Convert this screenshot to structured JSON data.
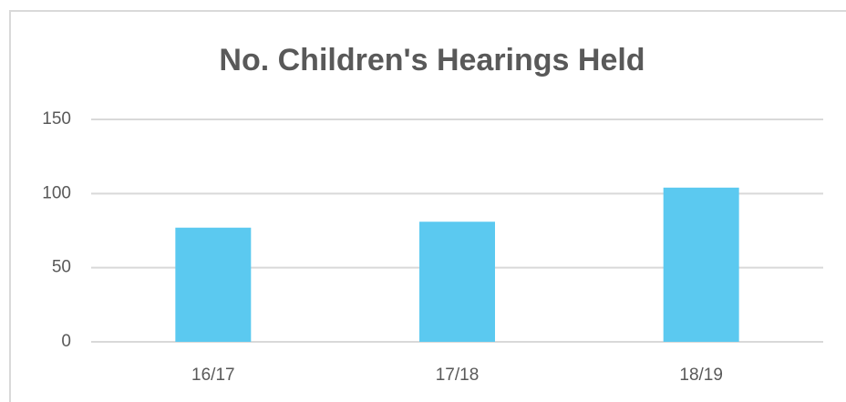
{
  "chart_data": {
    "type": "bar",
    "title": "No. Children's Hearings Held",
    "categories": [
      "16/17",
      "17/18",
      "18/19"
    ],
    "values": [
      77,
      81,
      104
    ],
    "color": "#5bc9f0",
    "ylim": [
      0,
      150
    ],
    "yticks": [
      0,
      50,
      100,
      150
    ],
    "grid": true
  }
}
